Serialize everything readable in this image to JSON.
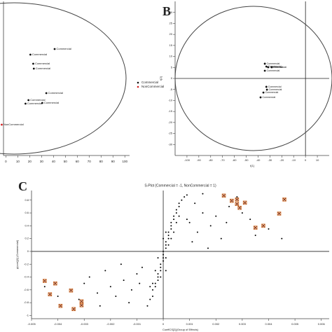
{
  "chart_data": [
    {
      "type": "scatter",
      "xlim": [
        -2,
        104
      ],
      "ylim": [
        -55,
        55
      ],
      "xticks": [
        0,
        10,
        20,
        30,
        40,
        50,
        60,
        70,
        80,
        90,
        100
      ],
      "ellipse": true,
      "legend": "right",
      "series": [
        {
          "name": "Commercial",
          "color": "#111111",
          "x": [
            41,
            20.6,
            23,
            23.5,
            34,
            19,
            16.5,
            30.6
          ],
          "y": [
            21,
            17,
            10.5,
            7,
            -10.5,
            -15.5,
            -18,
            -17.5
          ],
          "point_labels": [
            "Commercial",
            "Commercial",
            "Commercial",
            "Commercial",
            "Commercial",
            "Commercial",
            "Commercial",
            "Commercial"
          ]
        },
        {
          "name": "NonCommercial",
          "color": "#d42020",
          "x": [
            -3.5
          ],
          "y": [
            -33
          ],
          "point_labels": [
            "NonCommercial"
          ]
        }
      ]
    },
    {
      "type": "scatter",
      "panel_label": "B",
      "xlim": [
        -110,
        20
      ],
      "ylim": [
        -35,
        35
      ],
      "xticks": [
        -100,
        -90,
        -80,
        -70,
        -60,
        -50,
        -40,
        -30,
        -20,
        -10,
        0,
        10
      ],
      "yticks": [
        -30,
        -25,
        -20,
        -15,
        -10,
        -5,
        0,
        5,
        10,
        15,
        20,
        25,
        30
      ],
      "ellipse": true,
      "xlabel": "t[1]",
      "ylabel": "t[2]",
      "series": [
        {
          "color": "#111111",
          "x": [
            -34.3,
            -33,
            -31.5,
            -28.5,
            -34.3,
            -33,
            -32.5,
            -35.5,
            -37.9
          ],
          "y": [
            6.7,
            5.4,
            5.1,
            5.1,
            3.5,
            -3.8,
            -5.1,
            -6.4,
            -8.6
          ],
          "point_labels": [
            "Commercial",
            "Commercial",
            "Commercial",
            "Commercial",
            "Commercial",
            "Commercial",
            "Commercial",
            "Commercial",
            "Commercial"
          ]
        }
      ]
    },
    {
      "type": "scatter",
      "panel_label": "C",
      "title": "S-Plot (Commercial = -1, NonCommercial = 1)",
      "xlabel": "CoeffCS[2](Group of Effects)",
      "ylabel": "p(corr)[1] (Commercial)",
      "xlim": [
        -0.005,
        0.0063
      ],
      "ylim": [
        -1.05,
        0.95
      ],
      "xticks": [
        -0.005,
        -0.004,
        -0.003,
        -0.002,
        -0.001,
        0,
        0.001,
        0.002,
        0.003,
        0.004,
        0.005,
        0.006
      ],
      "yticks": [
        -1,
        -0.8,
        -0.6,
        -0.4,
        -0.2,
        0,
        0.2,
        0.4,
        0.6,
        0.8
      ],
      "series": [
        {
          "color": "#000000",
          "marker": "dot",
          "x": [
            -0.0006,
            -0.0005,
            -0.0004,
            -0.0004,
            -0.0003,
            -0.0003,
            -0.0002,
            -0.0002,
            -0.0002,
            -0.0001,
            -0.0001,
            -0.0001,
            0,
            0,
            0,
            0,
            0.0001,
            0.0001,
            0.0001,
            0.0002,
            0.0002,
            0.0002,
            0.0003,
            0.0003,
            0.0003,
            0.0004,
            0.0004,
            0.0005,
            0.0005,
            0.0006,
            0.0006,
            0.0007,
            0.0008,
            0.0009,
            -0.0004,
            -0.0001,
            0.0001,
            -0.0002,
            0.0002,
            0.0003,
            0.0004,
            0.0001,
            0.0005,
            0.0006,
            -0.0005,
            -0.0003,
            0,
            0.0001,
            0.0012,
            0.0015,
            0.002,
            0.0025,
            0.001,
            0.0013,
            0.0018,
            0.003,
            0.0022,
            0.0035,
            0.0028,
            0.0015,
            0.0009,
            0.0024,
            0.004,
            0.0033,
            0.0011,
            0.0017,
            -0.0012,
            -0.0015,
            -0.002,
            -0.0025,
            -0.001,
            -0.0018,
            -0.003,
            -0.0022,
            -0.0035,
            -0.0028,
            -0.0016,
            -0.004,
            -0.0032,
            -0.0013,
            -0.0009,
            -0.0024,
            -0.0008,
            -0.0045,
            0.0045
          ],
          "y": [
            -0.85,
            -0.75,
            -0.7,
            -0.6,
            -0.55,
            -0.5,
            -0.45,
            -0.4,
            -0.35,
            -0.3,
            -0.25,
            -0.2,
            -0.15,
            -0.1,
            -0.05,
            0,
            0.05,
            0.1,
            0.15,
            0.2,
            0.25,
            0.3,
            0.35,
            0.4,
            0.45,
            0.5,
            0.55,
            0.6,
            0.65,
            0.7,
            0.75,
            0.8,
            0.85,
            0.88,
            -0.5,
            -0.4,
            -0.1,
            -0.1,
            0.1,
            0.2,
            0.3,
            0.3,
            0.45,
            0.55,
            -0.55,
            -0.3,
            0.2,
            -0.3,
            0.75,
            0.6,
            0.55,
            0.7,
            0.45,
            0.3,
            0.4,
            0.6,
            0.2,
            0.25,
            0.85,
            0.9,
            0.5,
            0.45,
            0.35,
            0.5,
            0.15,
            0.05,
            -0.6,
            -0.45,
            -0.55,
            -0.65,
            -0.35,
            -0.7,
            -0.5,
            -0.3,
            -0.6,
            -0.4,
            -0.2,
            -0.7,
            -0.75,
            -0.8,
            -0.5,
            -0.85,
            -0.25,
            -0.55,
            0.2
          ]
        },
        {
          "color": "#d2691e",
          "marker": "x",
          "x": [
            0.0023,
            0.0026,
            0.0028,
            0.0029,
            0.0028,
            0.0031,
            0.0035,
            0.0038,
            0.0044,
            0.0046,
            -0.0045,
            -0.0041,
            -0.0043,
            -0.0039,
            -0.0035,
            -0.0034,
            -0.0031,
            -0.0031
          ],
          "y": [
            0.87,
            0.79,
            0.74,
            0.68,
            0.81,
            0.76,
            0.37,
            0.4,
            0.59,
            0.81,
            -0.46,
            -0.5,
            -0.67,
            -0.85,
            -0.61,
            -0.9,
            -0.78,
            -0.84
          ]
        }
      ]
    }
  ]
}
